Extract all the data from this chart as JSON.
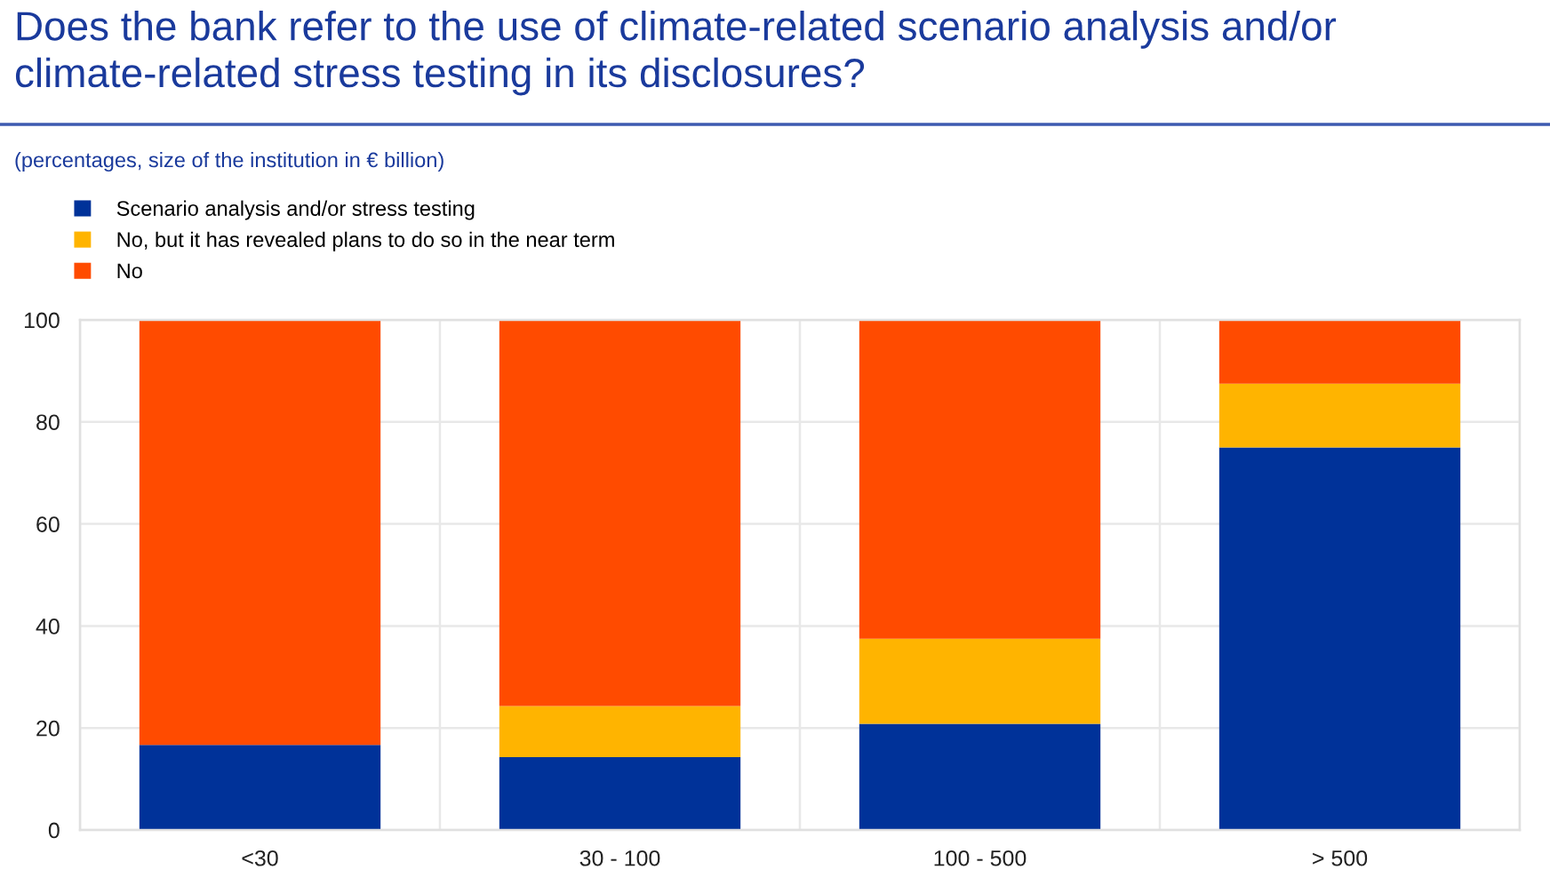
{
  "chart_data": {
    "type": "bar",
    "title": "Does the bank refer to the use of climate-related scenario analysis and/or climate-related stress testing in its disclosures?",
    "subtitle": "(percentages, size of the institution in € billion)",
    "categories": [
      "<30",
      "30 - 100",
      "100 - 500",
      "> 500"
    ],
    "series": [
      {
        "name": "Scenario analysis and/or stress testing",
        "color": "#003299",
        "values": [
          16.7,
          14.3,
          20.8,
          75.0
        ]
      },
      {
        "name": "No, but it has revealed plans to do so in the near term",
        "color": "#ffb400",
        "values": [
          0,
          10.0,
          16.7,
          12.5
        ]
      },
      {
        "name": "No",
        "color": "#ff4b00",
        "values": [
          83.3,
          75.7,
          62.5,
          12.5
        ]
      }
    ],
    "stacked": true,
    "ylim": [
      0,
      100
    ],
    "yticks": [
      0,
      20,
      40,
      60,
      80,
      100
    ],
    "grid": true,
    "legend": "top left"
  }
}
